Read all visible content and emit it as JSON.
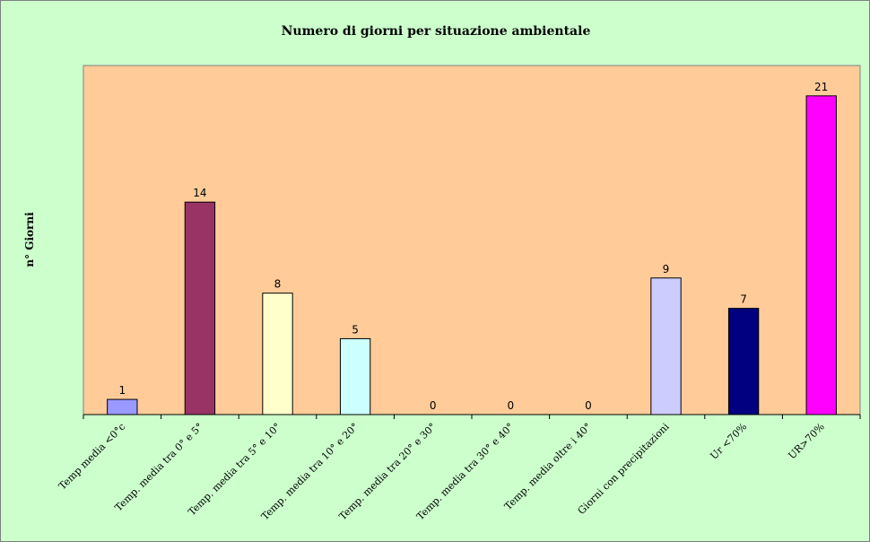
{
  "chart_data": {
    "type": "bar",
    "title": "Numero di giorni per situazione ambientale",
    "ylabel": "n° Giorni",
    "xlabel": "",
    "categories": [
      "Temp media <0°c",
      "Temp. media tra 0° e 5°",
      "Temp. media tra 5° e 10°",
      "Temp. media tra 10° e 20°",
      "Temp. media tra 20° e 30°",
      "Temp. media tra 30° e 40°",
      "Temp. media oltre i 40°",
      "Giorni con precipitazioni",
      "Ur <70%",
      "UR>70%"
    ],
    "values": [
      1,
      14,
      8,
      5,
      0,
      0,
      0,
      9,
      7,
      21
    ],
    "bar_colors": [
      "#9999ff",
      "#993366",
      "#ffffcc",
      "#ccffff",
      "#660066",
      "#ff8080",
      "#0066cc",
      "#ccccff",
      "#000080",
      "#ff00ff"
    ],
    "ylim": [
      0,
      23
    ],
    "grid": false,
    "legend": "none",
    "data_labels": true,
    "plot_background": "#ffcc99",
    "chart_background": "#ccffcc"
  }
}
